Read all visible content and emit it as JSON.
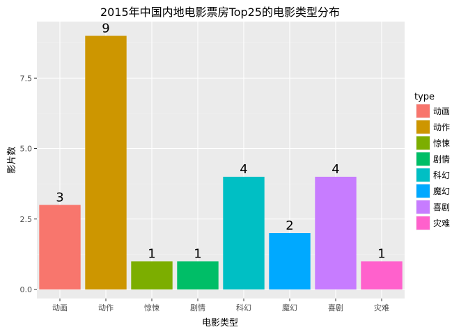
{
  "chart_data": {
    "type": "bar",
    "title": "2015年中国内地电影票房Top25的电影类型分布",
    "xlabel": "电影类型",
    "ylabel": "影片数",
    "categories": [
      "动画",
      "动作",
      "惊悚",
      "剧情",
      "科幻",
      "魔幻",
      "喜剧",
      "灾难"
    ],
    "values": [
      3,
      9,
      1,
      1,
      4,
      2,
      4,
      1
    ],
    "colors": [
      "#F8766D",
      "#CD9600",
      "#7CAE00",
      "#00BE67",
      "#00BFC4",
      "#00A9FF",
      "#C77CFF",
      "#FF61CC"
    ],
    "ylim": [
      0,
      9
    ],
    "yticks": [
      0.0,
      2.5,
      5.0,
      7.5
    ],
    "ytick_labels": [
      "0.0",
      "2.5",
      "5.0",
      "7.5"
    ],
    "grid": true,
    "panel_background": "#EBEBEB",
    "legend": {
      "title": "type",
      "position": "right",
      "entries": [
        "动画",
        "动作",
        "惊悚",
        "剧情",
        "科幻",
        "魔幻",
        "喜剧",
        "灾难"
      ]
    }
  }
}
